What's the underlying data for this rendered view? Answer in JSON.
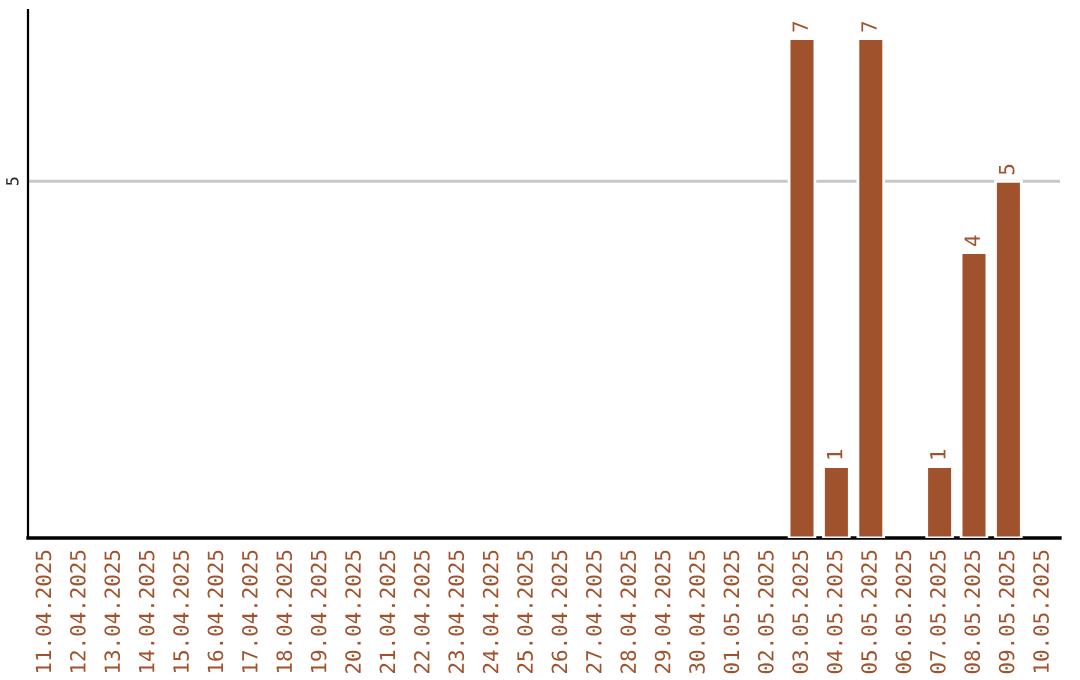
{
  "chart_data": {
    "type": "bar",
    "categories": [
      "11.04.2025",
      "12.04.2025",
      "13.04.2025",
      "14.04.2025",
      "15.04.2025",
      "16.04.2025",
      "17.04.2025",
      "18.04.2025",
      "19.04.2025",
      "20.04.2025",
      "21.04.2025",
      "22.04.2025",
      "23.04.2025",
      "24.04.2025",
      "25.04.2025",
      "26.04.2025",
      "27.04.2025",
      "28.04.2025",
      "29.04.2025",
      "30.04.2025",
      "01.05.2025",
      "02.05.2025",
      "03.05.2025",
      "04.05.2025",
      "05.05.2025",
      "06.05.2025",
      "07.05.2025",
      "08.05.2025",
      "09.05.2025",
      "10.05.2025"
    ],
    "values": [
      null,
      null,
      null,
      null,
      null,
      null,
      null,
      null,
      null,
      null,
      null,
      null,
      null,
      null,
      null,
      null,
      null,
      null,
      null,
      null,
      null,
      null,
      7,
      1,
      7,
      null,
      1,
      4,
      5,
      null
    ],
    "data_labels": true,
    "color": "#a0522d",
    "ylim": [
      0,
      7.4
    ],
    "ref_lines": [
      {
        "axis": "y",
        "value": 5,
        "label": "5",
        "color": "#c8c8c8"
      }
    ]
  }
}
